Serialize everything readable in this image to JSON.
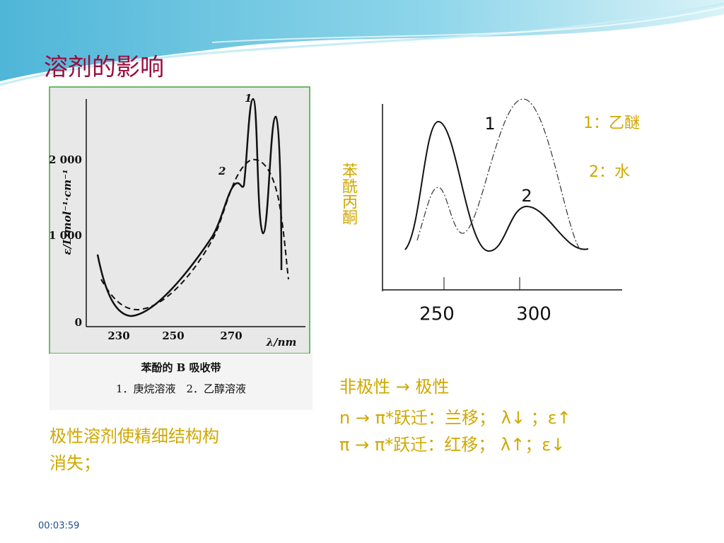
{
  "header": {
    "title": "溶剂的影响"
  },
  "figure1": {
    "y_label": "ε/L·mol⁻¹·cm⁻¹",
    "y_ticks": [
      "2 000",
      "1 000",
      "0"
    ],
    "x_ticks": [
      "230",
      "250",
      "270"
    ],
    "x_label": "λ/nm",
    "curve_labels": [
      "1",
      "2"
    ],
    "caption": [
      "苯酚的 B 吸收带",
      "1．庚烷溶液　2．乙醇溶液"
    ]
  },
  "figure2": {
    "y_label": "苯酰丙酮",
    "curve_labels": [
      "1",
      "2"
    ],
    "legend": [
      "1：乙醚",
      "2：水"
    ],
    "x_ticks": [
      "250",
      "300"
    ]
  },
  "notes": {
    "lines": [
      "非极性 → 极性",
      "n → π*跃迁：兰移； λ↓ ；ε↑",
      "π → π*跃迁：红移； λ↑；ε↓"
    ],
    "left_note": [
      "极性溶剂使精细结构构",
      "消失；"
    ]
  },
  "footer": {
    "time": "00:03:59"
  }
}
